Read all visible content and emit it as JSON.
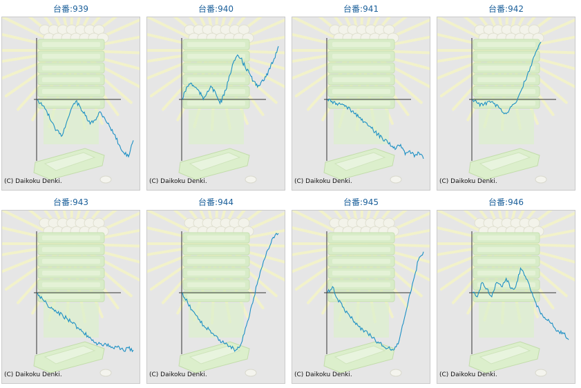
{
  "label_prefix": "台番:",
  "copyright": "(C) Daikoku Denki.",
  "colors": {
    "line": "#1b8fc4",
    "axis": "#333333",
    "title": "#1a5f9a"
  },
  "icons": {
    "background": "slot-machine-graphic"
  },
  "chart_data": [
    {
      "type": "line",
      "title": "939",
      "ylim": [
        -3000,
        3000
      ],
      "values": [
        0,
        -300,
        -600,
        -1100,
        -1500,
        -1800,
        -1200,
        -500,
        -100,
        -400,
        -800,
        -1200,
        -1000,
        -600,
        -900,
        -1300,
        -1700,
        -2200,
        -2600,
        -2800,
        -2000
      ]
    },
    {
      "type": "line",
      "title": "940",
      "ylim": [
        -3000,
        3000
      ],
      "values": [
        0,
        600,
        800,
        600,
        400,
        0,
        400,
        600,
        300,
        -200,
        200,
        900,
        1700,
        2100,
        2000,
        1600,
        1300,
        900,
        600,
        900,
        1100,
        1500,
        2000,
        2600
      ]
    },
    {
      "type": "line",
      "title": "941",
      "ylim": [
        -3000,
        3000
      ],
      "values": [
        0,
        -100,
        -200,
        -250,
        -300,
        -500,
        -700,
        -900,
        -1100,
        -1300,
        -1500,
        -1700,
        -1900,
        -2000,
        -2300,
        -2400,
        -2200,
        -2700,
        -2500,
        -2800,
        -2600,
        -2900
      ]
    },
    {
      "type": "line",
      "title": "942",
      "ylim": [
        -3000,
        3000
      ],
      "values": [
        0,
        -200,
        -300,
        -100,
        -200,
        -400,
        -700,
        -500,
        -200,
        300,
        900,
        1600,
        2300,
        2800
      ]
    },
    {
      "type": "line",
      "title": "943",
      "ylim": [
        -3000,
        3000
      ],
      "values": [
        0,
        -300,
        -600,
        -800,
        -1000,
        -1100,
        -1300,
        -1500,
        -1700,
        -1900,
        -2100,
        -2300,
        -2500,
        -2600,
        -2500,
        -2700,
        -2600,
        -2800,
        -2700,
        -2800
      ]
    },
    {
      "type": "line",
      "title": "944",
      "ylim": [
        -3000,
        3000
      ],
      "values": [
        0,
        -500,
        -900,
        -1300,
        -1600,
        -1800,
        -2100,
        -2300,
        -2500,
        -2600,
        -2800,
        -2500,
        -1600,
        -600,
        400,
        1300,
        2100,
        2700,
        2900
      ]
    },
    {
      "type": "line",
      "title": "945",
      "ylim": [
        -3000,
        3000
      ],
      "values": [
        0,
        300,
        -300,
        -700,
        -1000,
        -1300,
        -1600,
        -1800,
        -2000,
        -2200,
        -2400,
        -2600,
        -2700,
        -2800,
        -2500,
        -1500,
        -400,
        600,
        1600,
        2000
      ]
    },
    {
      "type": "line",
      "title": "946",
      "ylim": [
        -3000,
        3000
      ],
      "values": [
        0,
        -200,
        500,
        200,
        -200,
        500,
        300,
        700,
        200,
        300,
        1200,
        800,
        200,
        -400,
        -900,
        -1200,
        -1400,
        -1700,
        -1900,
        -2000,
        -2300
      ]
    }
  ]
}
